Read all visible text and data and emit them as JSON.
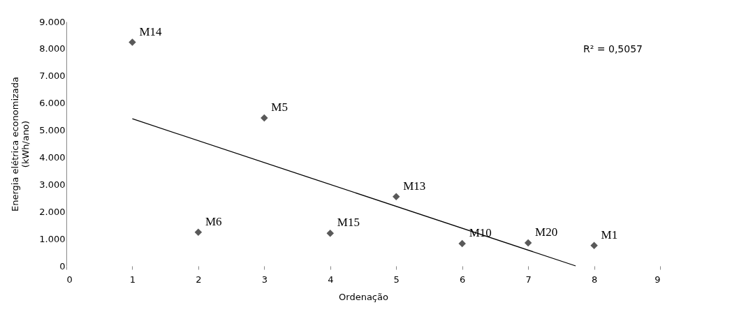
{
  "chart_data": {
    "type": "scatter",
    "xlabel": "Ordenação",
    "ylabel": "Energia elétrica economizada (kWh/ano)",
    "x": [
      1,
      2,
      3,
      4,
      5,
      6,
      7,
      8
    ],
    "series": [
      {
        "color": "#595959",
        "marker": "diamond",
        "values": [
          8240,
          1240,
          5450,
          1200,
          2550,
          820,
          850,
          750
        ]
      },
      {
        "type": "line",
        "line_style": "solid",
        "color": "#000000",
        "x": [
          1,
          7.72
        ],
        "values": [
          5420,
          0
        ]
      }
    ],
    "xlim": [
      0,
      9
    ],
    "xticks": [
      0,
      1,
      2,
      3,
      4,
      5,
      6,
      7,
      8,
      9
    ],
    "ylim": [
      0,
      9000
    ],
    "yticks": [
      0,
      {
        "value": 1000,
        "label": "1.000"
      },
      {
        "value": 2000,
        "label": "2.000"
      },
      {
        "value": 3000,
        "label": "3.000"
      },
      {
        "value": 4000,
        "label": "4.000"
      },
      {
        "value": 5000,
        "label": "5.000"
      },
      {
        "value": 6000,
        "label": "6.000"
      },
      {
        "value": 7000,
        "label": "7.000"
      },
      {
        "value": 8000,
        "label": "8.000"
      },
      {
        "value": 9000,
        "label": "9.000"
      }
    ],
    "grid": false,
    "annotations": [
      {
        "text": "M14",
        "x": 1,
        "y": 8240
      },
      {
        "text": "M6",
        "x": 2,
        "y": 1240
      },
      {
        "text": "M5",
        "x": 3,
        "y": 5450
      },
      {
        "text": "M15",
        "x": 4,
        "y": 1200
      },
      {
        "text": "M13",
        "x": 5,
        "y": 2550
      },
      {
        "text": "M10",
        "x": 6,
        "y": 820
      },
      {
        "text": "M20",
        "x": 7,
        "y": 850
      },
      {
        "text": "M1",
        "x": 8,
        "y": 750
      },
      "R² = 0,5057"
    ]
  }
}
